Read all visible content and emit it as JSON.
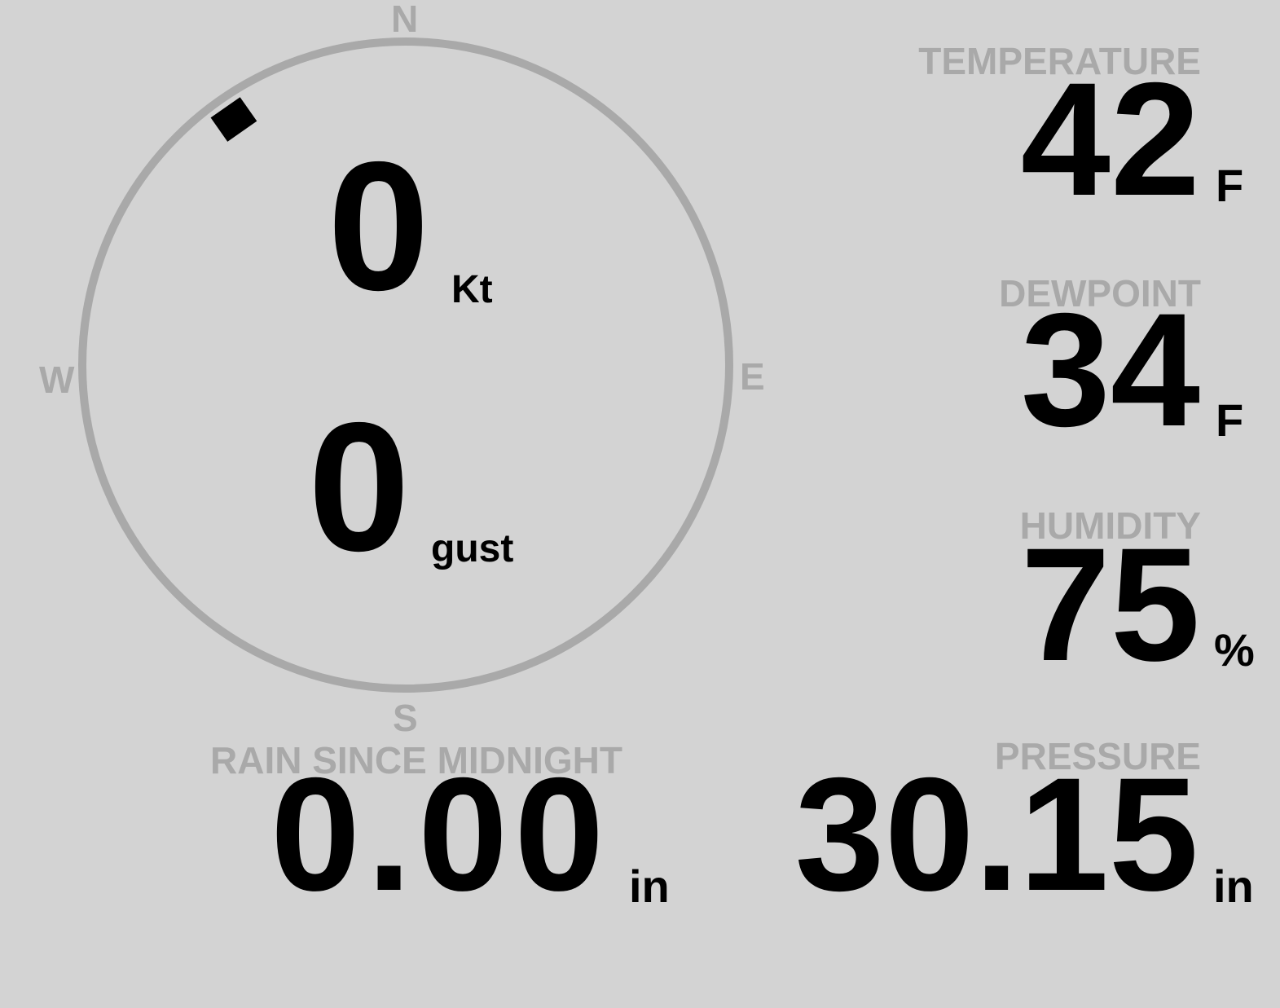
{
  "compass": {
    "north": "N",
    "south": "S",
    "east": "E",
    "west": "W",
    "wind_direction_deg": 325,
    "ring_color": "#a9a9a9"
  },
  "wind": {
    "speed": "0",
    "speed_unit": "Kt",
    "gust": "0",
    "gust_unit": "gust"
  },
  "temperature": {
    "label": "TEMPERATURE",
    "value": "42",
    "unit": "F"
  },
  "dewpoint": {
    "label": "DEWPOINT",
    "value": "34",
    "unit": "F"
  },
  "humidity": {
    "label": "HUMIDITY",
    "value": "75",
    "unit": "%"
  },
  "pressure": {
    "label": "PRESSURE",
    "value": "30.15",
    "unit": "in"
  },
  "rain": {
    "label": "RAIN SINCE MIDNIGHT",
    "value": "0.00",
    "unit": "in"
  },
  "colors": {
    "background": "#d3d3d3",
    "label": "#a9a9a9",
    "value": "#000000"
  }
}
